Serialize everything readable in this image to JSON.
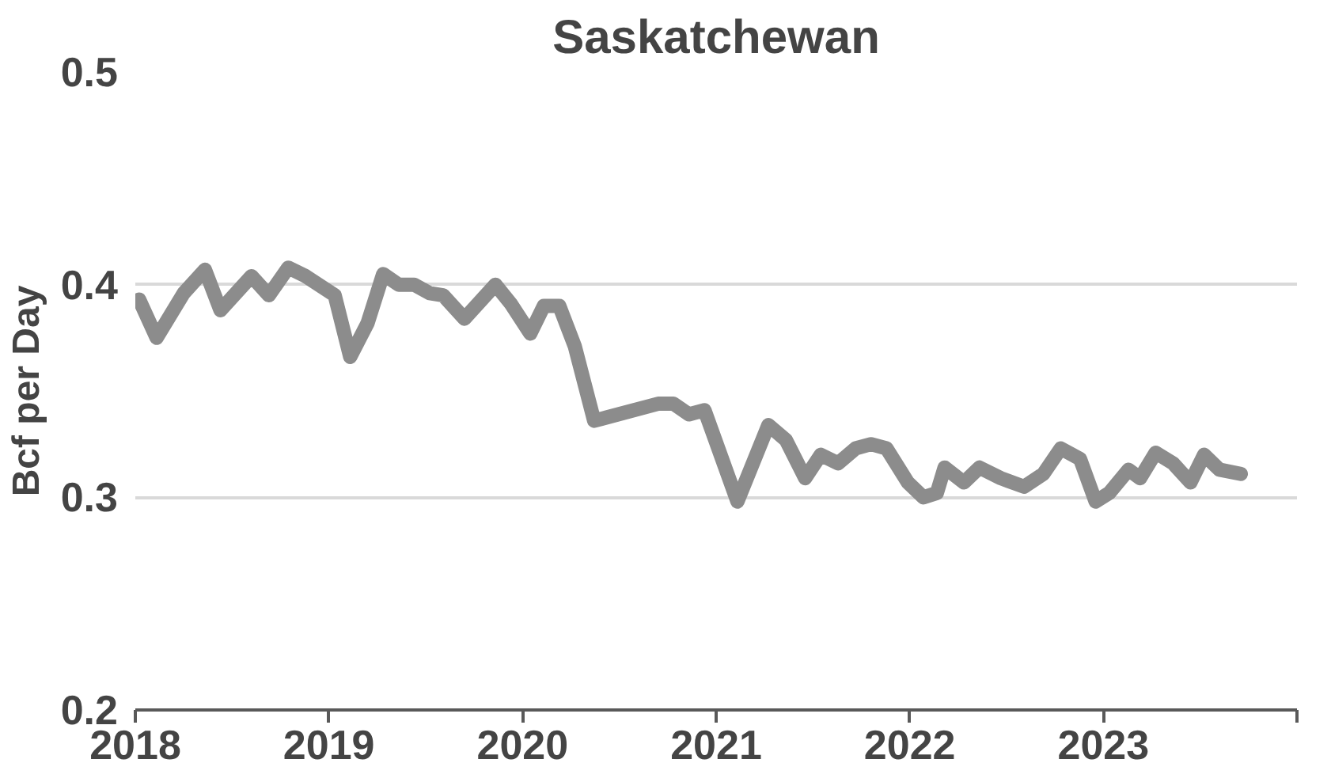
{
  "chart_data": {
    "type": "line",
    "title": "Saskatchewan",
    "ylabel": "Bcf per Day",
    "series": [
      {
        "color": "#8c8c8c",
        "x": [
          2018.02,
          2018.11,
          2018.25,
          2018.36,
          2018.44,
          2018.6,
          2018.69,
          2018.79,
          2018.88,
          2019.03,
          2019.11,
          2019.2,
          2019.28,
          2019.36,
          2019.44,
          2019.52,
          2019.59,
          2019.7,
          2019.86,
          2019.94,
          2020.04,
          2020.11,
          2020.19,
          2020.27,
          2020.37,
          2020.7,
          2020.78,
          2020.86,
          2020.94,
          2021.11,
          2021.27,
          2021.36,
          2021.46,
          2021.54,
          2021.63,
          2021.72,
          2021.8,
          2021.88,
          2021.99,
          2022.07,
          2022.14,
          2022.18,
          2022.28,
          2022.36,
          2022.47,
          2022.59,
          2022.69,
          2022.78,
          2022.88,
          2022.96,
          2023.03,
          2023.13,
          2023.19,
          2023.27,
          2023.36,
          2023.45,
          2023.52,
          2023.6,
          2023.71
        ],
        "values": [
          0.393,
          0.375,
          0.396,
          0.407,
          0.388,
          0.404,
          0.395,
          0.408,
          0.404,
          0.395,
          0.366,
          0.382,
          0.405,
          0.4,
          0.4,
          0.396,
          0.395,
          0.384,
          0.4,
          0.391,
          0.377,
          0.39,
          0.39,
          0.371,
          0.336,
          0.344,
          0.344,
          0.339,
          0.341,
          0.298,
          0.334,
          0.327,
          0.309,
          0.32,
          0.316,
          0.323,
          0.325,
          0.323,
          0.307,
          0.3,
          0.302,
          0.314,
          0.307,
          0.314,
          0.309,
          0.305,
          0.311,
          0.323,
          0.318,
          0.298,
          0.302,
          0.313,
          0.309,
          0.321,
          0.316,
          0.307,
          0.32,
          0.313,
          0.311
        ]
      }
    ],
    "xlim": [
      2018,
      2024
    ],
    "xticks": [
      2018,
      2019,
      2020,
      2021,
      2022,
      2023,
      {
        "value": 2024,
        "label": null
      }
    ],
    "ylim": [
      0.2,
      0.5
    ],
    "yticks": [
      0.2,
      0.3,
      0.4,
      0.5
    ],
    "grid": "y"
  }
}
